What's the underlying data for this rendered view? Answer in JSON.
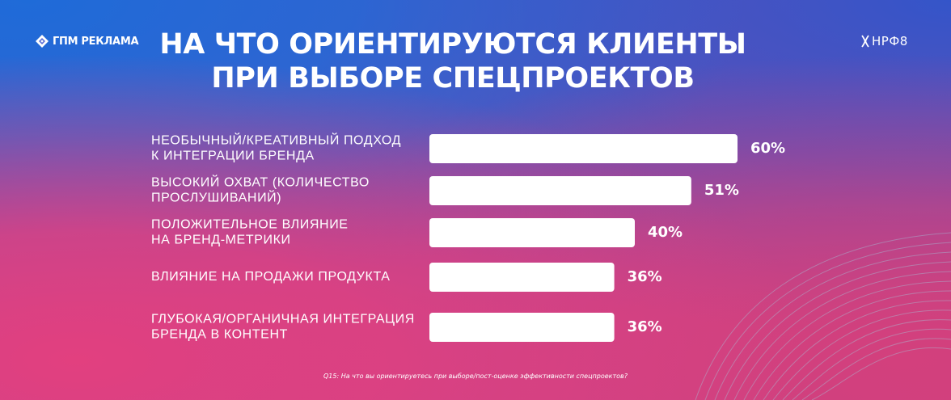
{
  "brand": {
    "left_logo_text": "ГПМ РЕКЛАМА",
    "right_logo_text": "НРФ8",
    "left_logo_icon": "diamond-logo-icon",
    "right_logo_icon": "x-logo-icon"
  },
  "title": {
    "line1": "НА ЧТО ОРИЕНТИРУЮТСЯ КЛИЕНТЫ",
    "line2": "ПРИ ВЫБОРЕ СПЕЦПРОЕКТОВ"
  },
  "footnote": "Q15: На что вы ориентируетесь при выборе/пост-оценке эффективности спецпроектов?",
  "colors": {
    "bar": "#ffffff",
    "text": "#ffffff",
    "background_pink": "#e2407f",
    "background_blue": "#1f6bd8",
    "background_purple": "#8a4aa8"
  },
  "chart_data": {
    "type": "bar",
    "orientation": "horizontal",
    "categories": [
      [
        "НЕОБЫЧНЫЙ/КРЕАТИВНЫЙ ПОДХОД",
        "К ИНТЕГРАЦИИ БРЕНДА"
      ],
      [
        "ВЫСОКИЙ ОХВАТ (КОЛИЧЕСТВО",
        "ПРОСЛУШИВАНИЙ)"
      ],
      [
        "ПОЛОЖИТЕЛЬНОЕ ВЛИЯНИЕ",
        "НА БРЕНД-МЕТРИКИ"
      ],
      [
        "ВЛИЯНИЕ НА ПРОДАЖИ ПРОДУКТА"
      ],
      [
        "ГЛУБОКАЯ/ОРГАНИЧНАЯ ИНТЕГРАЦИЯ",
        "БРЕНДА В КОНТЕНТ"
      ]
    ],
    "values": [
      60,
      51,
      40,
      36,
      36
    ],
    "value_labels": [
      "60%",
      "51%",
      "40%",
      "36%",
      "36%"
    ],
    "unit": "%",
    "xlim": [
      0,
      60
    ],
    "grid": false,
    "legend": "none"
  }
}
